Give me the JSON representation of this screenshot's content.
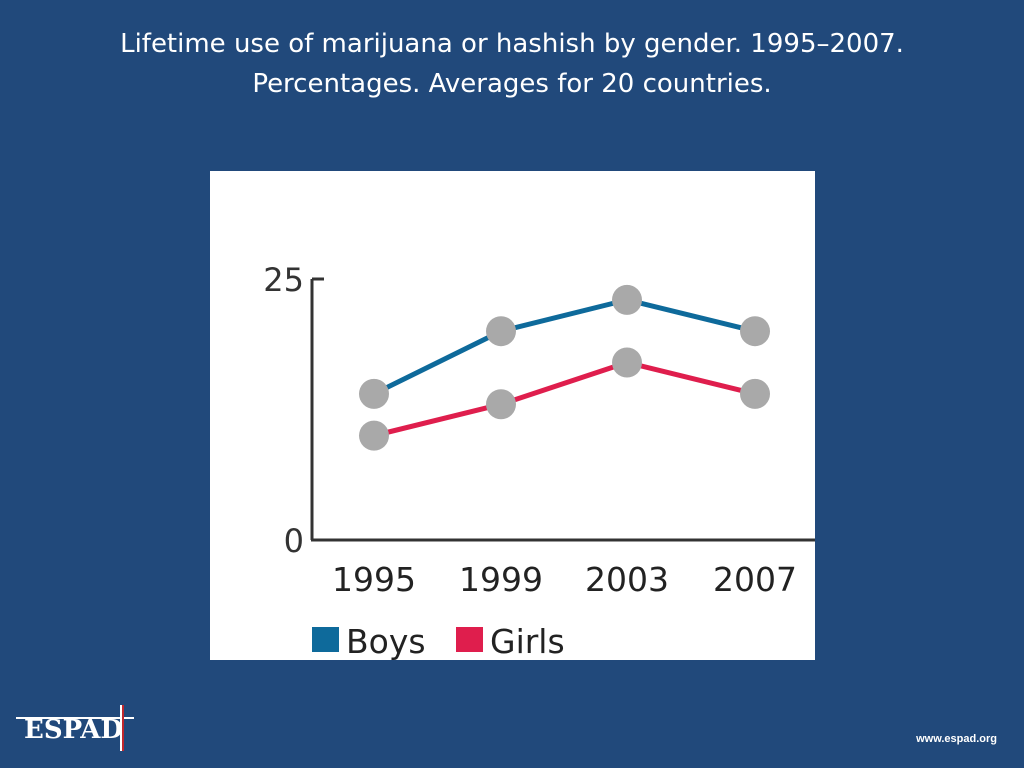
{
  "slide": {
    "title_line1": "Lifetime use of marijuana or hashish by gender. 1995–2007.",
    "title_line2": "Percentages. Averages for 20 countries."
  },
  "colors": {
    "background": "#21497b",
    "boys": "#0e6a9b",
    "girls": "#df1e4d",
    "marker": "#a9a9a9",
    "axis": "#333333"
  },
  "chart_data": {
    "type": "line",
    "x": [
      "1995",
      "1999",
      "2003",
      "2007"
    ],
    "series": [
      {
        "name": "Boys",
        "values": [
          14,
          20,
          23,
          20
        ]
      },
      {
        "name": "Girls",
        "values": [
          10,
          13,
          17,
          14
        ]
      }
    ],
    "title": "",
    "xlabel": "",
    "ylabel": "",
    "ylim": [
      0,
      25
    ],
    "yticks": [
      "0",
      "25"
    ],
    "grid": false,
    "legend_position": "bottom"
  },
  "footer": {
    "logo_text": "ESPAD",
    "website": "www.espad.org"
  }
}
